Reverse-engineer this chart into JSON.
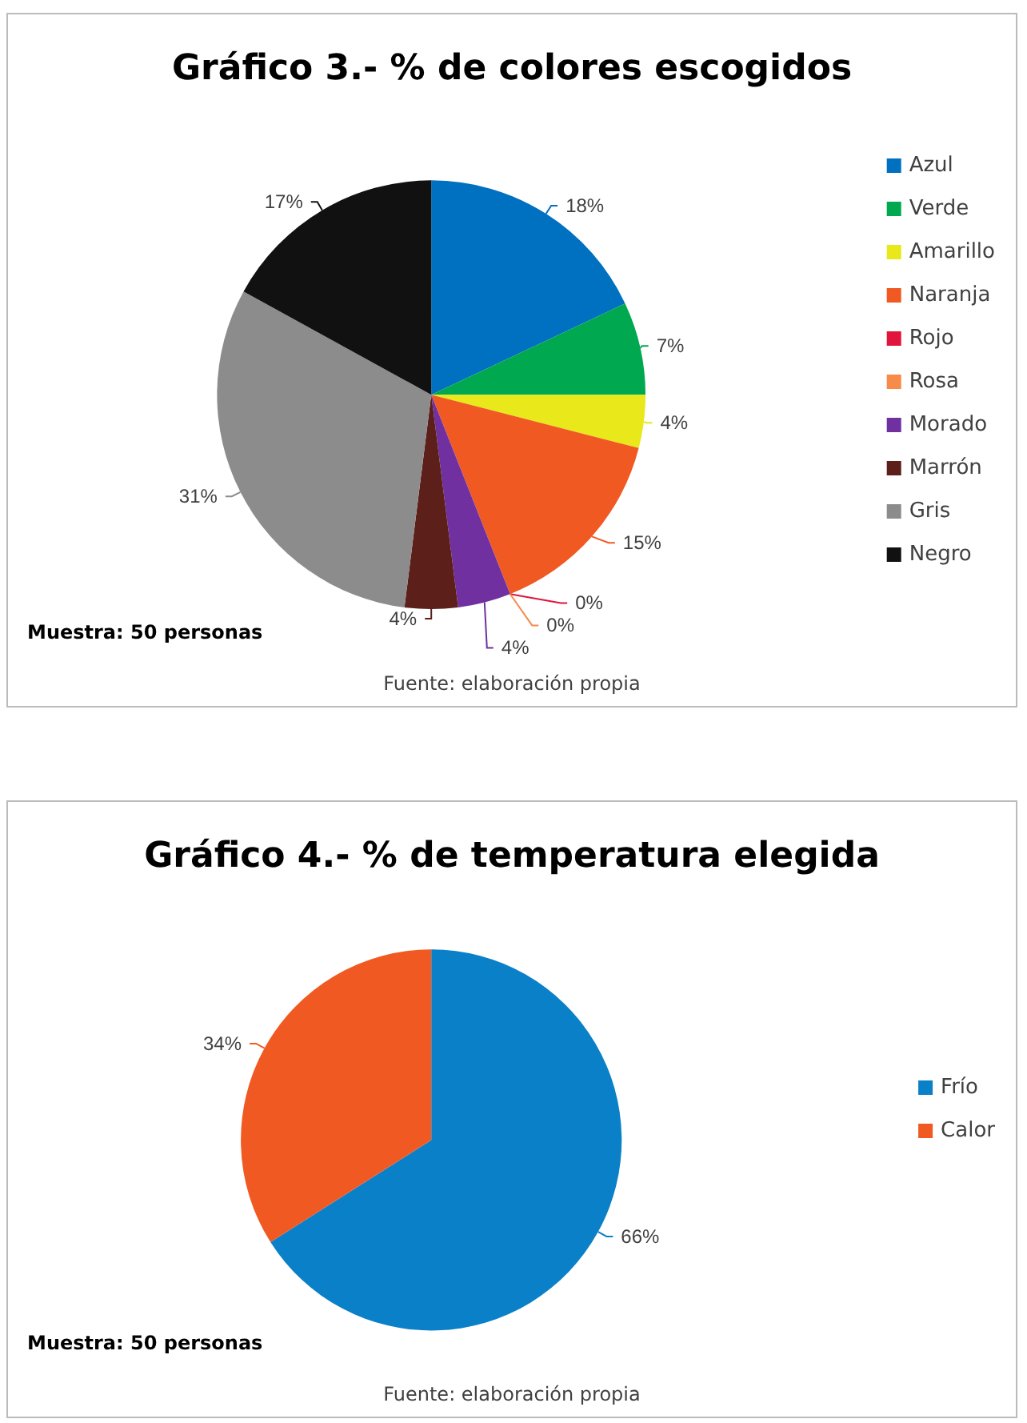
{
  "chart_data": [
    {
      "type": "pie",
      "title": "Gráfico 3.- % de colores escogidos",
      "categories": [
        "Azul",
        "Verde",
        "Amarillo",
        "Naranja",
        "Rojo",
        "Rosa",
        "Morado",
        "Marrón",
        "Gris",
        "Negro"
      ],
      "values": [
        18,
        7,
        4,
        15,
        0,
        0,
        4,
        4,
        31,
        17
      ],
      "value_labels": [
        "18%",
        "7%",
        "4%",
        "15%",
        "0%",
        "0%",
        "4%",
        "4%",
        "31%",
        "17%"
      ],
      "colors": [
        "#0070c0",
        "#00a84f",
        "#e8e81a",
        "#f05a22",
        "#e0143c",
        "#f68b4a",
        "#7030a0",
        "#5c1f1a",
        "#8c8c8c",
        "#111111"
      ],
      "legend": "right",
      "annotations": [
        "Muestra: 50 personas",
        "Fuente: elaboración propia"
      ]
    },
    {
      "type": "pie",
      "title": "Gráfico 4.- % de temperatura elegida",
      "categories": [
        "Frío",
        "Calor"
      ],
      "values": [
        66,
        34
      ],
      "value_labels": [
        "66%",
        "34%"
      ],
      "colors": [
        "#0a80c8",
        "#f05a22"
      ],
      "legend": "right",
      "annotations": [
        "Muestra: 50 personas",
        "Fuente: elaboración propia"
      ]
    }
  ]
}
